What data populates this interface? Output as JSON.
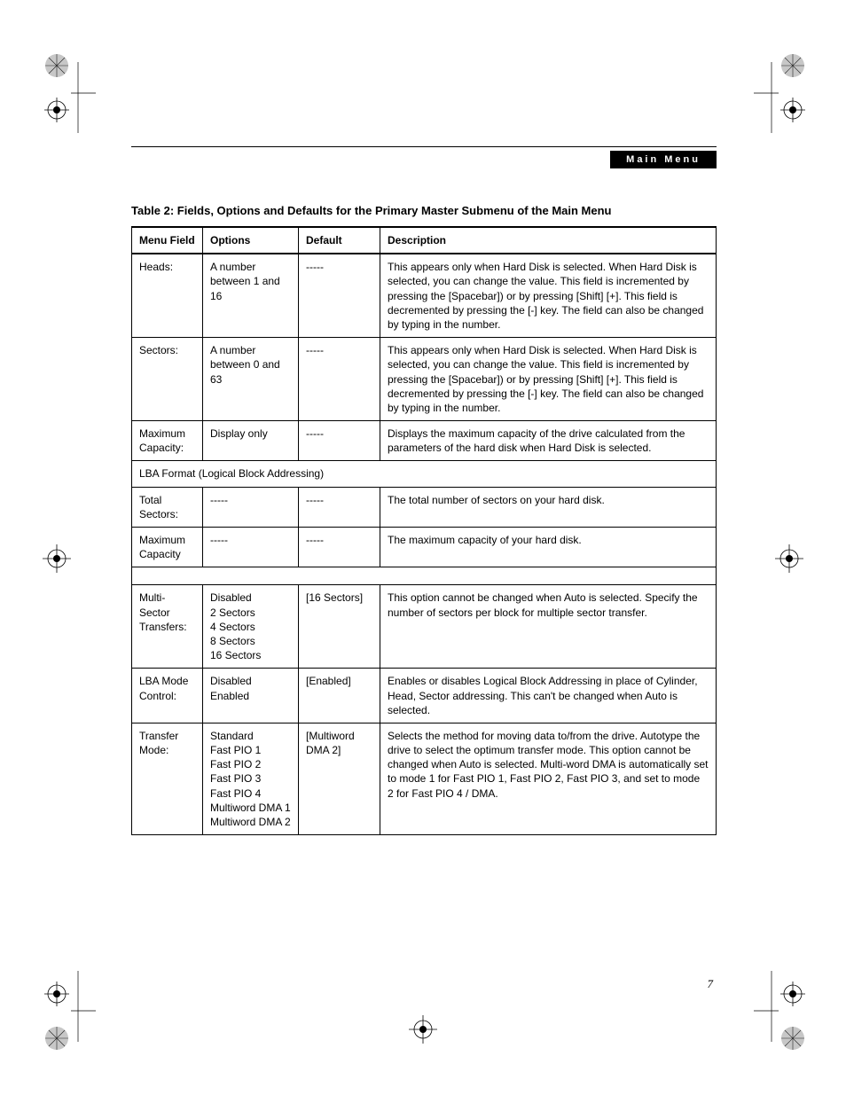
{
  "header": {
    "chip_label": "Main Menu"
  },
  "caption": "Table 2: Fields, Options and Defaults for the Primary Master Submenu of the Main Menu",
  "columns": [
    "Menu Field",
    "Options",
    "Default",
    "Description"
  ],
  "rows": [
    {
      "field": "Heads:",
      "options": "A number between 1 and 16",
      "def": "-----",
      "desc": "This appears only when Hard Disk is selected. When Hard Disk is selected, you can change the value. This field is incremented by pressing the [Spacebar]) or by pressing [Shift] [+]. This field is decremented by pressing the [-] key. The field can also be changed by typing in the number."
    },
    {
      "field": "Sectors:",
      "options": "A number between 0 and 63",
      "def": "-----",
      "desc": "This appears only when Hard Disk is selected. When Hard Disk is selected, you can change the value. This field is incremented by pressing the [Spacebar]) or by pressing [Shift] [+]. This field is decremented by pressing the [-] key. The field can also be changed by typing in the number."
    },
    {
      "field": "Maximum Capacity:",
      "options": "Display only",
      "def": "-----",
      "desc": "Displays the maximum capacity of the drive calculated from the parameters of the hard disk when Hard Disk is selected."
    }
  ],
  "span1": "LBA Format (Logical Block Addressing)",
  "rows2": [
    {
      "field": "Total Sectors:",
      "options": "-----",
      "def": "-----",
      "desc": "The total number of sectors on your hard disk."
    },
    {
      "field": "Maximum Capacity",
      "options": "-----",
      "def": "-----",
      "desc": "The maximum capacity of your hard disk."
    }
  ],
  "rows3": [
    {
      "field": "Multi-Sector Transfers:",
      "options": "Disabled\n2 Sectors\n4 Sectors\n8 Sectors\n16 Sectors",
      "def": "[16 Sectors]",
      "desc": "This option cannot be changed when Auto is selected. Specify the number of sectors per block for multiple sector transfer."
    },
    {
      "field": "LBA Mode Control:",
      "options": "Disabled\nEnabled",
      "def": "[Enabled]",
      "desc": "Enables or disables Logical Block Addressing in place of Cylinder, Head, Sector addressing. This can't be changed when Auto is selected."
    },
    {
      "field": "Transfer Mode:",
      "options": "Standard\nFast PIO 1\nFast PIO 2\nFast PIO 3\nFast PIO 4\nMultiword DMA 1\nMultiword DMA 2",
      "def": "[Multiword DMA 2]",
      "desc": "Selects the method for moving data to/from the drive. Autotype the drive to select the optimum transfer mode. This option cannot be changed when Auto is selected. Multi-word DMA is automatically set to mode 1 for Fast PIO 1, Fast PIO 2, Fast PIO 3, and set to mode 2 for Fast PIO 4 / DMA."
    }
  ],
  "page_number": "7",
  "colors": {
    "chip_bg": "#000000",
    "chip_fg": "#ffffff",
    "text": "#000000",
    "border": "#000000"
  }
}
